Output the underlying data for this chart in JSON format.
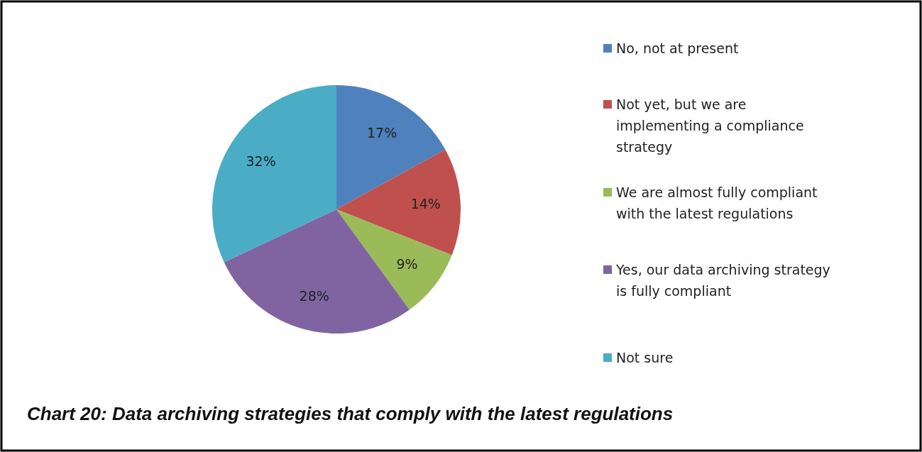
{
  "chart_data": {
    "type": "pie",
    "title": "Chart 20: Data archiving strategies that comply with the latest regulations",
    "categories": [
      "No, not at present",
      "Not yet, but we are implementing a compliance strategy",
      "We are almost fully compliant with the latest regulations",
      "Yes, our data archiving strategy is fully compliant",
      "Not sure"
    ],
    "values": [
      17,
      14,
      9,
      28,
      32
    ],
    "colors": [
      "#4f81bd",
      "#c0504d",
      "#9bbb59",
      "#8064a2",
      "#4bacc6"
    ],
    "value_labels": [
      "17%",
      "14%",
      "9%",
      "28%",
      "32%"
    ],
    "legend": "right"
  }
}
